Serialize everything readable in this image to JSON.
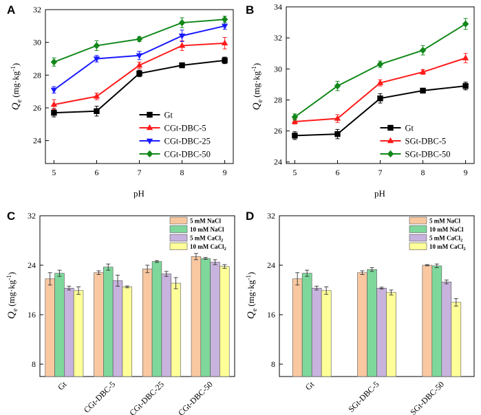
{
  "chart_data": [
    {
      "panel": "A",
      "type": "line",
      "title": "",
      "xlabel": "pH",
      "ylabel_main": "Q",
      "ylabel_sub": "e",
      "ylabel_unit": "(mg·kg",
      "ylabel_exp": "-1",
      "ylabel_close": ")",
      "x": [
        5,
        6,
        7,
        8,
        9
      ],
      "xlim": [
        4.8,
        9.2
      ],
      "ylim": [
        22.6,
        32
      ],
      "yticks": [
        24,
        26,
        28,
        30,
        32
      ],
      "legend_position": "bottom-right",
      "series": [
        {
          "name": "Gt",
          "color": "#000000",
          "marker": "square",
          "values": [
            25.7,
            25.8,
            28.1,
            28.6,
            28.9
          ],
          "errors": [
            0.25,
            0.3,
            0.2,
            0.15,
            0.2
          ]
        },
        {
          "name": "CGt-DBC-5",
          "color": "#ff1a1a",
          "marker": "triangle-up",
          "values": [
            26.2,
            26.7,
            28.6,
            29.8,
            29.95
          ],
          "errors": [
            0.3,
            0.2,
            0.2,
            0.3,
            0.35
          ]
        },
        {
          "name": "CGt-DBC-25",
          "color": "#1a1aff",
          "marker": "triangle-down",
          "values": [
            27.1,
            29.0,
            29.2,
            30.4,
            31.0
          ],
          "errors": [
            0.2,
            0.2,
            0.25,
            0.35,
            0.2
          ]
        },
        {
          "name": "CGt-DBC-50",
          "color": "#12881a",
          "marker": "diamond",
          "values": [
            28.8,
            29.8,
            30.2,
            31.2,
            31.4
          ],
          "errors": [
            0.25,
            0.3,
            0.15,
            0.3,
            0.2
          ]
        }
      ]
    },
    {
      "panel": "B",
      "type": "line",
      "title": "",
      "xlabel": "pH",
      "ylabel_main": "Q",
      "ylabel_sub": "e",
      "ylabel_unit": "(mg·kg",
      "ylabel_exp": "-1",
      "ylabel_close": ")",
      "x": [
        5,
        6,
        7,
        8,
        9
      ],
      "xlim": [
        4.8,
        9.2
      ],
      "ylim": [
        23.9,
        34
      ],
      "yticks": [
        24,
        26,
        28,
        30,
        32,
        34
      ],
      "legend_position": "bottom-right",
      "series": [
        {
          "name": "Gt",
          "color": "#000000",
          "marker": "square",
          "values": [
            25.7,
            25.8,
            28.1,
            28.6,
            28.9
          ],
          "errors": [
            0.25,
            0.3,
            0.3,
            0.15,
            0.25
          ]
        },
        {
          "name": "SGt-DBC-5",
          "color": "#ff1a1a",
          "marker": "triangle-up",
          "values": [
            26.6,
            26.8,
            29.1,
            29.8,
            30.7
          ],
          "errors": [
            0.15,
            0.25,
            0.2,
            0.15,
            0.3
          ]
        },
        {
          "name": "SGt-DBC-50",
          "color": "#12881a",
          "marker": "diamond",
          "values": [
            26.9,
            28.9,
            30.3,
            31.2,
            32.9
          ],
          "errors": [
            0.2,
            0.3,
            0.2,
            0.3,
            0.35
          ]
        }
      ]
    },
    {
      "panel": "C",
      "type": "bar",
      "title": "",
      "xlabel": "",
      "ylabel_main": "Q",
      "ylabel_sub": "e",
      "ylabel_unit": "(mg·kg",
      "ylabel_exp": "-1",
      "ylabel_close": ")",
      "categories": [
        "Gt",
        "CGt-DBC-5",
        "CGt-DBC-25",
        "CGt-DBC-50"
      ],
      "ylim": [
        6,
        32
      ],
      "yticks": [
        8,
        16,
        24,
        32
      ],
      "legend_position": "top-right",
      "series": [
        {
          "name": "5 mM NaCl",
          "name_main": "5 mM NaCl",
          "name_sub": "",
          "color": "#f9c8a0",
          "values": [
            21.8,
            22.8,
            23.4,
            25.4
          ],
          "errors": [
            1.0,
            0.3,
            0.6,
            0.5
          ]
        },
        {
          "name": "10 mM NaCl",
          "name_main": "10 mM NaCl",
          "name_sub": "",
          "color": "#7ed89b",
          "values": [
            22.7,
            23.7,
            24.6,
            25.1
          ],
          "errors": [
            0.5,
            0.5,
            0.15,
            0.15
          ]
        },
        {
          "name": "5 mM CaCl2",
          "name_main": "5 mM CaCl",
          "name_sub": "2",
          "color": "#c7b3dd",
          "values": [
            20.3,
            21.5,
            22.6,
            24.5
          ],
          "errors": [
            0.3,
            0.9,
            0.4,
            0.4
          ]
        },
        {
          "name": "10 mM CaCl2",
          "name_main": "10 mM CaCl",
          "name_sub": "2",
          "color": "#ffff99",
          "values": [
            19.9,
            20.5,
            21.1,
            23.8
          ],
          "errors": [
            0.6,
            0.15,
            0.9,
            0.3
          ]
        }
      ]
    },
    {
      "panel": "D",
      "type": "bar",
      "title": "",
      "xlabel": "",
      "ylabel_main": "Q",
      "ylabel_sub": "e",
      "ylabel_unit": "(mg·kg",
      "ylabel_exp": "-1",
      "ylabel_close": ")",
      "categories": [
        "Gt",
        "SGt-DBC-5",
        "SGt-DBC-50"
      ],
      "ylim": [
        6,
        32
      ],
      "yticks": [
        8,
        16,
        24,
        32
      ],
      "legend_position": "top-right",
      "series": [
        {
          "name": "5 mM NaCl",
          "name_main": "5 mM NaCl",
          "name_sub": "",
          "color": "#f9c8a0",
          "values": [
            21.8,
            22.8,
            24.0
          ],
          "errors": [
            1.0,
            0.3,
            0.1
          ]
        },
        {
          "name": "10 mM NaCl",
          "name_main": "10 mM NaCl",
          "name_sub": "",
          "color": "#7ed89b",
          "values": [
            22.7,
            23.3,
            23.9
          ],
          "errors": [
            0.5,
            0.3,
            0.3
          ]
        },
        {
          "name": "5 mM CaCl2",
          "name_main": "5 mM CaCl",
          "name_sub": "2",
          "color": "#c7b3dd",
          "values": [
            20.3,
            20.3,
            21.3
          ],
          "errors": [
            0.3,
            0.15,
            0.3
          ]
        },
        {
          "name": "10 mM CaCl2",
          "name_main": "10 mM CaCl",
          "name_sub": "2",
          "color": "#ffff99",
          "values": [
            19.9,
            19.6,
            18.0
          ],
          "errors": [
            0.6,
            0.4,
            0.6
          ]
        }
      ]
    }
  ]
}
